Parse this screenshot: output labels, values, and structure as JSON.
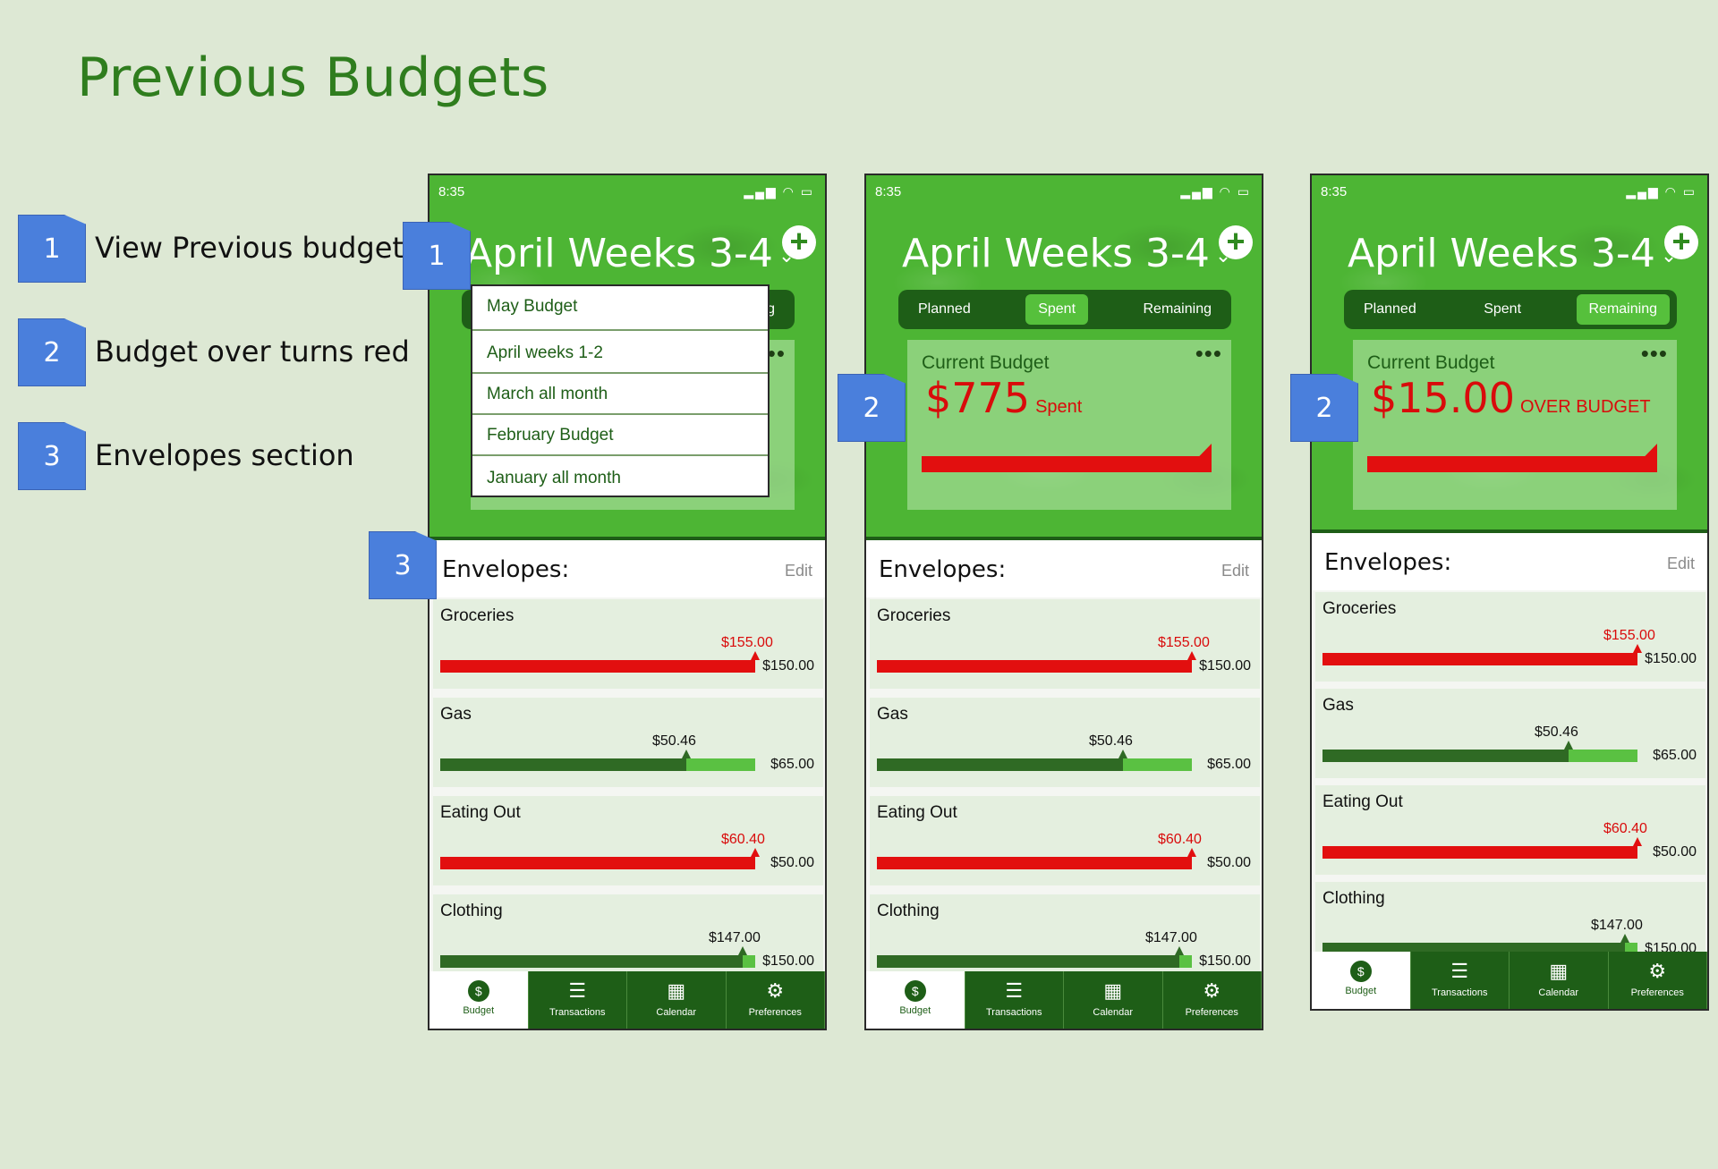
{
  "page_title": "Previous Budgets",
  "legend": [
    {
      "num": "1",
      "text": "View Previous budgets"
    },
    {
      "num": "2",
      "text": "Budget over turns red"
    },
    {
      "num": "3",
      "text": "Envelopes section"
    }
  ],
  "phones": [
    {
      "status_time": "8:35",
      "header_title": "April Weeks 3-4",
      "dropdown": [
        "May Budget",
        "April weeks 1-2",
        "March all month",
        "February Budget",
        "January all month"
      ],
      "seg_peek": "g",
      "envelopes_title": "Envelopes:",
      "edit_label": "Edit",
      "envelopes": [
        {
          "name": "Groceries",
          "spent": "$155.00",
          "budget": "$150.00",
          "fraction": 1.0,
          "over": true
        },
        {
          "name": "Gas",
          "spent": "$50.46",
          "budget": "$65.00",
          "fraction": 0.78,
          "over": false
        },
        {
          "name": "Eating Out",
          "spent": "$60.40",
          "budget": "$50.00",
          "fraction": 1.0,
          "over": true
        },
        {
          "name": "Clothing",
          "spent": "$147.00",
          "budget": "$150.00",
          "fraction": 0.96,
          "over": false
        }
      ],
      "tabs": [
        "Budget",
        "Transactions",
        "Calendar",
        "Preferences"
      ],
      "annotations": {
        "a1": "1",
        "a3": "3"
      }
    },
    {
      "status_time": "8:35",
      "header_title": "April Weeks 3-4",
      "segments": [
        "Planned",
        "Spent",
        "Remaining"
      ],
      "active_segment": 1,
      "card_label": "Current Budget",
      "card_amount": "$775",
      "card_suffix": "Spent",
      "envelopes_title": "Envelopes:",
      "edit_label": "Edit",
      "envelopes": [
        {
          "name": "Groceries",
          "spent": "$155.00",
          "budget": "$150.00",
          "fraction": 1.0,
          "over": true
        },
        {
          "name": "Gas",
          "spent": "$50.46",
          "budget": "$65.00",
          "fraction": 0.78,
          "over": false
        },
        {
          "name": "Eating Out",
          "spent": "$60.40",
          "budget": "$50.00",
          "fraction": 1.0,
          "over": true
        },
        {
          "name": "Clothing",
          "spent": "$147.00",
          "budget": "$150.00",
          "fraction": 0.96,
          "over": false
        }
      ],
      "tabs": [
        "Budget",
        "Transactions",
        "Calendar",
        "Preferences"
      ],
      "annotations": {
        "a2": "2"
      }
    },
    {
      "status_time": "8:35",
      "header_title": "April Weeks 3-4",
      "segments": [
        "Planned",
        "Spent",
        "Remaining"
      ],
      "active_segment": 2,
      "card_label": "Current Budget",
      "card_amount": "$15.00",
      "card_suffix": "OVER BUDGET",
      "envelopes_title": "Envelopes:",
      "edit_label": "Edit",
      "envelopes": [
        {
          "name": "Groceries",
          "spent": "$155.00",
          "budget": "$150.00",
          "fraction": 1.0,
          "over": true
        },
        {
          "name": "Gas",
          "spent": "$50.46",
          "budget": "$65.00",
          "fraction": 0.78,
          "over": false
        },
        {
          "name": "Eating Out",
          "spent": "$60.40",
          "budget": "$50.00",
          "fraction": 1.0,
          "over": true
        },
        {
          "name": "Clothing",
          "spent": "$147.00",
          "budget": "$150.00",
          "fraction": 0.96,
          "over": false
        }
      ],
      "tabs": [
        "Budget",
        "Transactions",
        "Calendar",
        "Preferences"
      ],
      "annotations": {
        "a2": "2"
      }
    }
  ],
  "colors": {
    "green_dark": "#1e5e17",
    "green_bright": "#4db534",
    "red": "#e20f0f",
    "badge_blue": "#4a7fdc"
  },
  "icons": {
    "add": "plus-icon",
    "chevron": "chevron-down-icon",
    "budget": "dollar-coin-icon",
    "transactions": "list-icon",
    "calendar": "calendar-icon",
    "preferences": "gear-icon"
  }
}
